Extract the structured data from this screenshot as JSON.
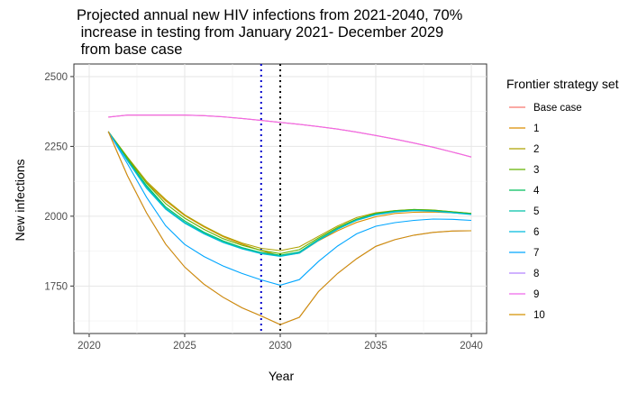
{
  "chart_data": {
    "type": "line",
    "title_lines": [
      "Projected annual new HIV infections from 2021-2040, 70%",
      " increase in testing from January 2021- December 2029",
      " from base case"
    ],
    "xlabel": "Year",
    "ylabel": "New infections",
    "xlim": [
      2019.2,
      2040.8
    ],
    "ylim": [
      1580,
      2545
    ],
    "x_ticks": [
      2020,
      2025,
      2030,
      2035,
      2040
    ],
    "y_ticks": [
      1750,
      2000,
      2250,
      2500
    ],
    "grid": true,
    "legend_title": "Frontier strategy set",
    "legend_position": "right",
    "vlines": [
      {
        "x": 2029,
        "color": "#0000cc",
        "style": "dotted"
      },
      {
        "x": 2030,
        "color": "#000000",
        "style": "dotted"
      }
    ],
    "x": [
      2021,
      2022,
      2023,
      2024,
      2025,
      2026,
      2027,
      2028,
      2029,
      2030,
      2031,
      2032,
      2033,
      2034,
      2035,
      2036,
      2037,
      2038,
      2039,
      2040
    ],
    "series": [
      {
        "name": "Base case",
        "color": "#F8766D",
        "values": [
          2355,
          2362,
          2362,
          2362,
          2362,
          2360,
          2356,
          2350,
          2343,
          2336,
          2329,
          2321,
          2312,
          2301,
          2289,
          2276,
          2262,
          2247,
          2230,
          2212
        ]
      },
      {
        "name": "1",
        "color": "#DB8E00",
        "values": [
          2303,
          2205,
          2120,
          2055,
          2002,
          1962,
          1927,
          1900,
          1877,
          1858,
          1868,
          1912,
          1948,
          1978,
          1998,
          2010,
          2014,
          2015,
          2012,
          2008
        ]
      },
      {
        "name": "2",
        "color": "#AEA200",
        "values": [
          2303,
          2212,
          2125,
          2060,
          2005,
          1965,
          1930,
          1904,
          1885,
          1877,
          1890,
          1928,
          1965,
          1995,
          2012,
          2020,
          2024,
          2022,
          2016,
          2010
        ]
      },
      {
        "name": "3",
        "color": "#64B200",
        "values": [
          2303,
          2210,
          2118,
          2045,
          1993,
          1953,
          1920,
          1896,
          1878,
          1866,
          1880,
          1922,
          1960,
          1990,
          2010,
          2020,
          2024,
          2022,
          2016,
          2010
        ]
      },
      {
        "name": "4",
        "color": "#00BD5C",
        "values": [
          2303,
          2203,
          2110,
          2033,
          1983,
          1943,
          1912,
          1888,
          1870,
          1860,
          1872,
          1917,
          1956,
          1988,
          2008,
          2018,
          2022,
          2020,
          2014,
          2008
        ]
      },
      {
        "name": "5",
        "color": "#00C1A7",
        "values": [
          2303,
          2200,
          2105,
          2028,
          1978,
          1940,
          1908,
          1885,
          1868,
          1858,
          1870,
          1915,
          1955,
          1987,
          2007,
          2017,
          2021,
          2019,
          2013,
          2007
        ]
      },
      {
        "name": "6",
        "color": "#00BADE",
        "values": [
          2303,
          2198,
          2100,
          2025,
          1975,
          1937,
          1906,
          1883,
          1866,
          1856,
          1868,
          1913,
          1953,
          1985,
          2005,
          2015,
          2020,
          2018,
          2012,
          2006
        ]
      },
      {
        "name": "7",
        "color": "#00A6FF",
        "values": [
          2303,
          2188,
          2068,
          1966,
          1899,
          1856,
          1822,
          1795,
          1772,
          1753,
          1773,
          1838,
          1893,
          1937,
          1964,
          1977,
          1985,
          1990,
          1989,
          1985
        ]
      },
      {
        "name": "8",
        "color": "#B385FF",
        "values": [
          2303,
          2145,
          2012,
          1900,
          1818,
          1757,
          1710,
          1672,
          1643,
          1612,
          1638,
          1730,
          1795,
          1848,
          1892,
          1916,
          1932,
          1942,
          1947,
          1948
        ]
      },
      {
        "name": "9",
        "color": "#EF67EB",
        "values": [
          2355,
          2362,
          2362,
          2362,
          2362,
          2360,
          2356,
          2350,
          2343,
          2336,
          2329,
          2321,
          2312,
          2301,
          2289,
          2276,
          2262,
          2247,
          2230,
          2212
        ]
      },
      {
        "name": "10",
        "color": "#D39200",
        "values": [
          2303,
          2145,
          2012,
          1900,
          1818,
          1757,
          1710,
          1672,
          1643,
          1612,
          1638,
          1730,
          1795,
          1848,
          1892,
          1916,
          1932,
          1942,
          1947,
          1948
        ]
      }
    ]
  }
}
